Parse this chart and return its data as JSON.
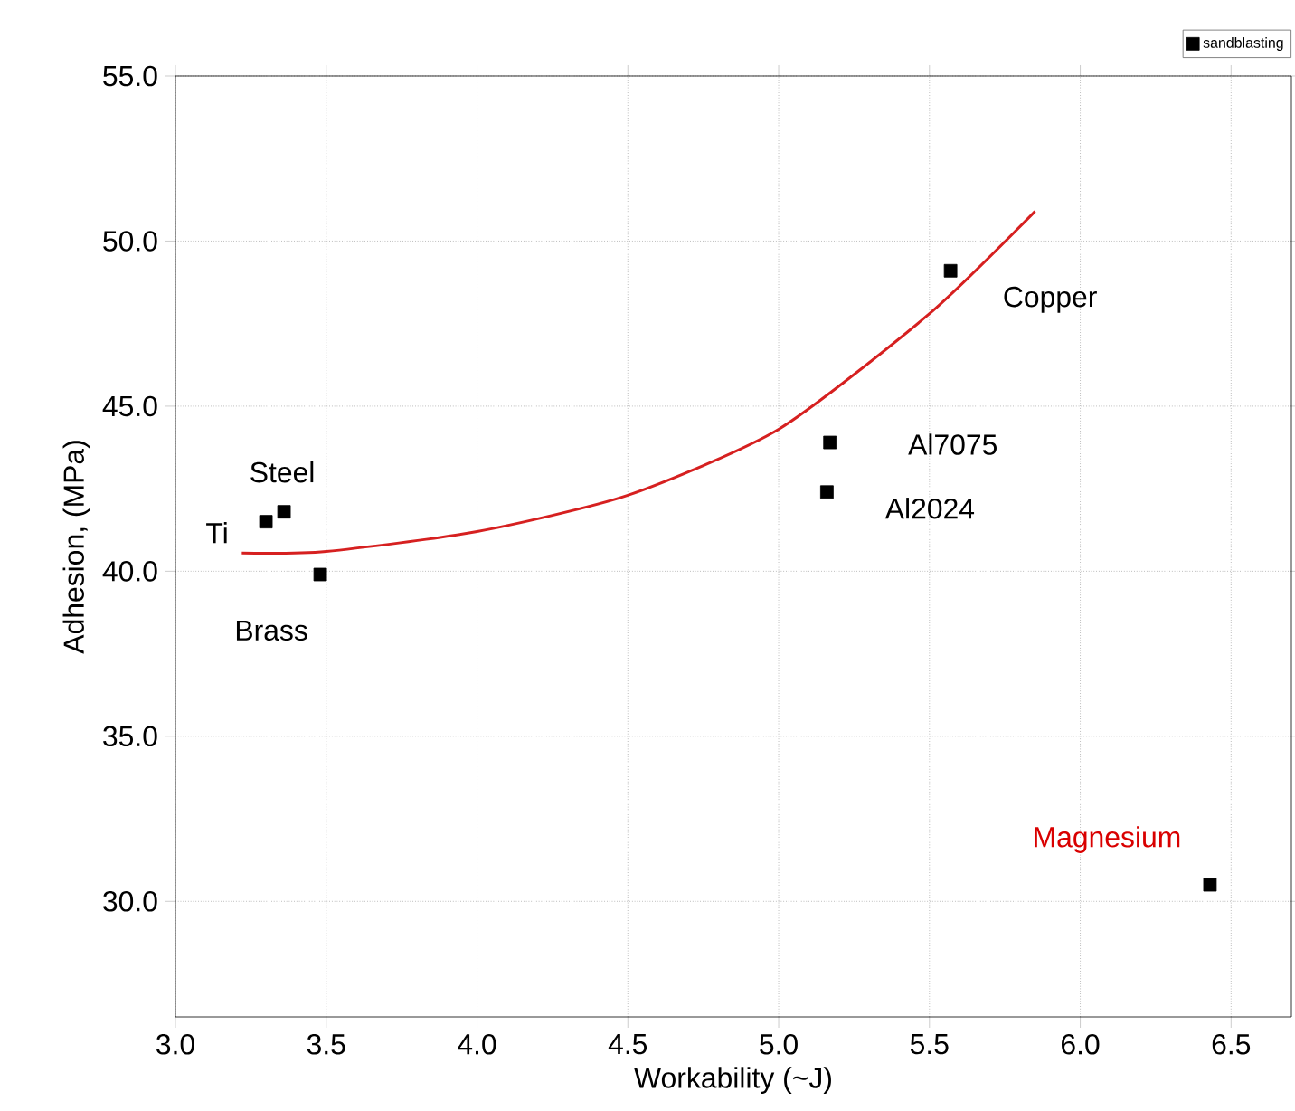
{
  "chart_data": {
    "type": "scatter",
    "xlabel": "Workability (~J)",
    "ylabel": "Adhesion, (MPa)",
    "xlim": [
      3.0,
      6.7
    ],
    "ylim": [
      26.5,
      55.0
    ],
    "xticks": [
      {
        "value": 3.0,
        "label": "3.0"
      },
      {
        "value": 3.5,
        "label": "3.5"
      },
      {
        "value": 4.0,
        "label": "4.0"
      },
      {
        "value": 4.5,
        "label": "4.5"
      },
      {
        "value": 5.0,
        "label": "5.0"
      },
      {
        "value": 5.5,
        "label": "5.5"
      },
      {
        "value": 6.0,
        "label": "6.0"
      },
      {
        "value": 6.5,
        "label": "6.5"
      }
    ],
    "yticks": [
      {
        "value": 30,
        "label": "30.0"
      },
      {
        "value": 35,
        "label": "35.0"
      },
      {
        "value": 40,
        "label": "40.0"
      },
      {
        "value": 45,
        "label": "45.0"
      },
      {
        "value": 50,
        "label": "50.0"
      },
      {
        "value": 55,
        "label": "55.0"
      }
    ],
    "grid": true,
    "legend": "top right",
    "series": [
      {
        "name": "sandblasting",
        "marker": "square",
        "color": "#000000",
        "x": [
          3.3,
          3.36,
          3.48,
          5.16,
          5.17,
          5.57,
          6.43
        ],
        "values": [
          41.5,
          41.8,
          39.9,
          42.4,
          43.9,
          49.1,
          30.5
        ]
      },
      {
        "type": "line",
        "marker": "none",
        "color": "#d62020",
        "x": [
          3.22,
          3.5,
          4.0,
          4.5,
          5.0,
          5.5,
          5.85
        ],
        "values": [
          40.55,
          40.6,
          41.2,
          42.3,
          44.3,
          47.8,
          50.9
        ]
      }
    ],
    "annotations": [
      {
        "text": "Ti",
        "x": 3.3,
        "y": 41.5
      },
      {
        "text": "Steel",
        "x": 3.36,
        "y": 41.8
      },
      {
        "text": "Brass",
        "x": 3.48,
        "y": 39.9
      },
      {
        "text": "Al7075",
        "x": 5.17,
        "y": 43.9
      },
      {
        "text": "Al2024",
        "x": 5.16,
        "y": 42.4
      },
      {
        "text": "Copper",
        "x": 5.57,
        "y": 49.1
      },
      {
        "text": "Magnesium",
        "x": 6.43,
        "y": 30.5
      }
    ]
  }
}
